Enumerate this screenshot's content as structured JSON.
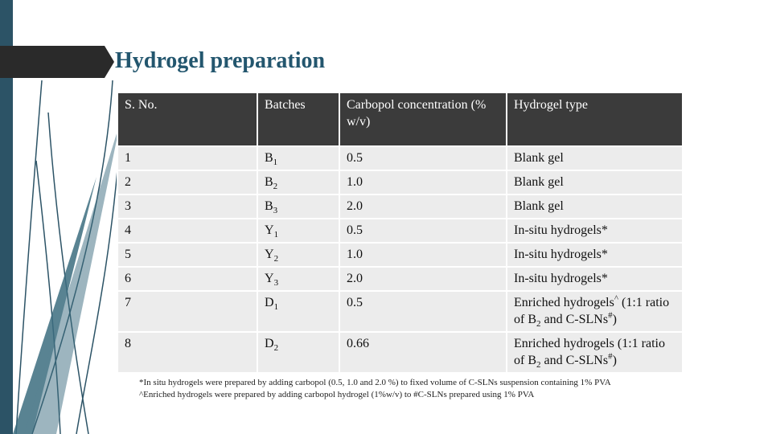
{
  "slide": {
    "title": "Hydrogel preparation",
    "accent_color": "#23566e",
    "band_color": "#2c5366"
  },
  "table": {
    "headers": [
      "S. No.",
      "Batches",
      "Carbopol concentration (% w/v)",
      "Hydrogel type"
    ],
    "rows": [
      {
        "sno": "1",
        "batch": "B",
        "batch_sub": "1",
        "conc": "0.5",
        "type": "Blank gel"
      },
      {
        "sno": "2",
        "batch": "B",
        "batch_sub": "2",
        "conc": "1.0",
        "type": "Blank gel"
      },
      {
        "sno": "3",
        "batch": "B",
        "batch_sub": "3",
        "conc": "2.0",
        "type": "Blank gel"
      },
      {
        "sno": "4",
        "batch": "Y",
        "batch_sub": "1",
        "conc": "0.5",
        "type": "In-situ hydrogels*"
      },
      {
        "sno": "5",
        "batch": "Y",
        "batch_sub": "2",
        "conc": "1.0",
        "type": "In-situ hydrogels*"
      },
      {
        "sno": "6",
        "batch": "Y",
        "batch_sub": "3",
        "conc": "2.0",
        "type": "In-situ hydrogels*"
      },
      {
        "sno": "7",
        "batch": "D",
        "batch_sub": "1",
        "conc": "0.5",
        "type_a": "Enriched hydrogels",
        "type_sup": "^",
        "type_b": " (1:1 ratio of B",
        "type_sub": "2",
        "type_c": " and C-SLNs",
        "type_sup2": "#",
        "type_d": ")"
      },
      {
        "sno": "8",
        "batch": "D",
        "batch_sub": "2",
        "conc": "0.66",
        "type_a": "Enriched hydrogels",
        "type_sup": "",
        "type_b": " (1:1 ratio of B",
        "type_sub": "2",
        "type_c": " and C-SLNs",
        "type_sup2": "#",
        "type_d": ")"
      }
    ]
  },
  "footnotes": [
    "*In situ hydrogels were prepared by adding carbopol (0.5, 1.0 and 2.0 %) to fixed volume of C-SLNs suspension containing 1% PVA",
    "^Enriched hydrogels were prepared by adding carbopol hydrogel (1%w/v) to #C-SLNs prepared using 1% PVA"
  ]
}
